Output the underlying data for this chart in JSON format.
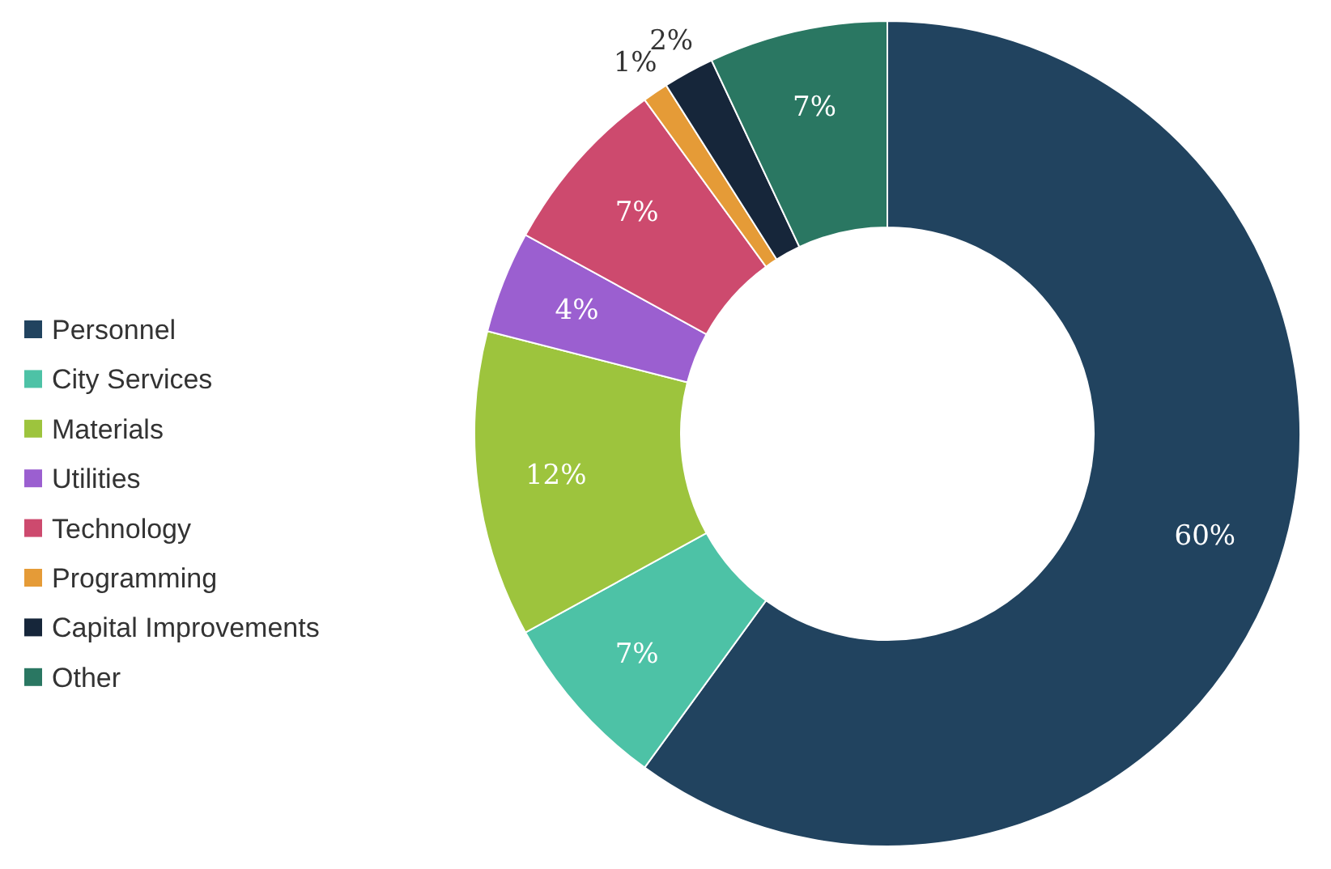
{
  "chart_data": {
    "type": "donut",
    "categories": [
      "Personnel",
      "City Services",
      "Materials",
      "Utilities",
      "Technology",
      "Programming",
      "Capital Improvements",
      "Other"
    ],
    "values": [
      60,
      7,
      12,
      4,
      7,
      1,
      2,
      7
    ],
    "colors": [
      "#21435f",
      "#4dc2a6",
      "#9dc43d",
      "#9b5fd0",
      "#cd4a6e",
      "#e59b37",
      "#16263a",
      "#2a7762"
    ],
    "value_labels": [
      "60%",
      "7%",
      "12%",
      "4%",
      "7%",
      "1%",
      "2%",
      "7%"
    ],
    "legend": "left"
  }
}
